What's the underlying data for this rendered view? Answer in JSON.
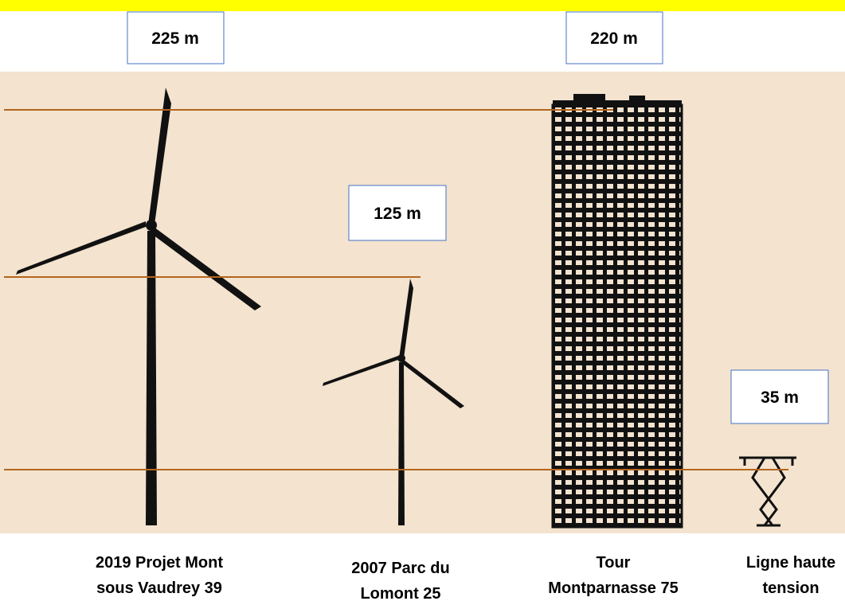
{
  "height_labels": [
    "225 m",
    "220 m",
    "125 m",
    "35 m"
  ],
  "captions": [
    {
      "lines": [
        "2019 Projet Mont",
        "sous Vaudrey 39"
      ]
    },
    {
      "lines": [
        "2007 Parc du",
        "Lomont 25"
      ]
    },
    {
      "lines": [
        "Tour",
        "Montparnasse 75"
      ]
    },
    {
      "lines": [
        "Ligne haute",
        "tension"
      ]
    }
  ]
}
